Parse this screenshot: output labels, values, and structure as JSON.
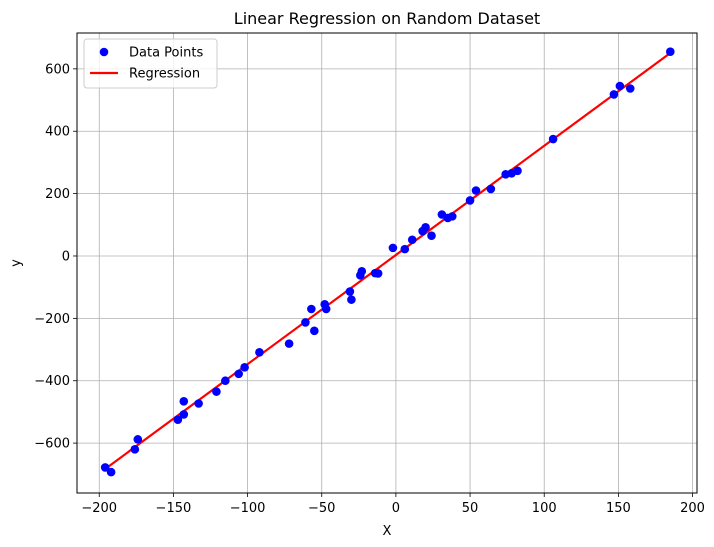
{
  "chart_data": {
    "type": "scatter",
    "title": "Linear Regression on Random Dataset",
    "xlabel": "X",
    "ylabel": "y",
    "xlim": [
      -215,
      203
    ],
    "ylim": [
      -760,
      715
    ],
    "xticks": [
      -200,
      -150,
      -100,
      -50,
      0,
      50,
      100,
      150,
      200
    ],
    "yticks": [
      -600,
      -400,
      -200,
      0,
      200,
      400,
      600
    ],
    "grid": true,
    "legend": {
      "position": "top-left",
      "entries": [
        {
          "name": "Data Points",
          "type": "marker",
          "color": "#0000ff"
        },
        {
          "name": "Regression",
          "type": "line",
          "color": "#ff0000"
        }
      ]
    },
    "series": [
      {
        "name": "Data Points",
        "kind": "scatter",
        "color": "#0000ff",
        "points": [
          [
            -196,
            -678
          ],
          [
            -192,
            -693
          ],
          [
            -176,
            -620
          ],
          [
            -174,
            -588
          ],
          [
            -147,
            -525
          ],
          [
            -143,
            -508
          ],
          [
            -143,
            -466
          ],
          [
            -133,
            -473
          ],
          [
            -121,
            -435
          ],
          [
            -115,
            -400
          ],
          [
            -106,
            -378
          ],
          [
            -102,
            -357
          ],
          [
            -92,
            -309
          ],
          [
            -72,
            -281
          ],
          [
            -61,
            -213
          ],
          [
            -57,
            -170
          ],
          [
            -55,
            -240
          ],
          [
            -48,
            -155
          ],
          [
            -47,
            -170
          ],
          [
            -31,
            -114
          ],
          [
            -30,
            -140
          ],
          [
            -24,
            -62
          ],
          [
            -23,
            -49
          ],
          [
            -14,
            -55
          ],
          [
            -12,
            -56
          ],
          [
            -2,
            26
          ],
          [
            6,
            22
          ],
          [
            11,
            52
          ],
          [
            18,
            80
          ],
          [
            20,
            92
          ],
          [
            24,
            65
          ],
          [
            31,
            133
          ],
          [
            35,
            122
          ],
          [
            38,
            127
          ],
          [
            50,
            178
          ],
          [
            54,
            210
          ],
          [
            64,
            215
          ],
          [
            74,
            262
          ],
          [
            78,
            265
          ],
          [
            82,
            273
          ],
          [
            106,
            375
          ],
          [
            147,
            518
          ],
          [
            151,
            545
          ],
          [
            158,
            537
          ],
          [
            185,
            655
          ]
        ]
      },
      {
        "name": "Regression",
        "kind": "line",
        "color": "#ff0000",
        "points": [
          [
            -196,
            -683
          ],
          [
            185,
            651
          ]
        ]
      }
    ]
  }
}
